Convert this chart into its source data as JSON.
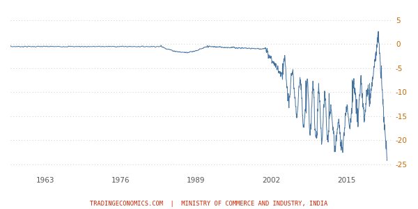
{
  "x_ticks": [
    1963,
    1976,
    1989,
    2002,
    2015
  ],
  "y_ticks": [
    5,
    0,
    -5,
    -10,
    -15,
    -20,
    -25
  ],
  "ylim": [
    -27,
    7
  ],
  "xlim": [
    1957,
    2023
  ],
  "line_color": "#4472a0",
  "line_width": 0.7,
  "background_color": "#ffffff",
  "grid_color": "#cccccc",
  "footer_text": "TRADINGECONOMICS.COM  |  MINISTRY OF COMMERCE AND INDUSTRY, INDIA",
  "footer_color": "#cc2200",
  "footer_fontsize": 6.2
}
